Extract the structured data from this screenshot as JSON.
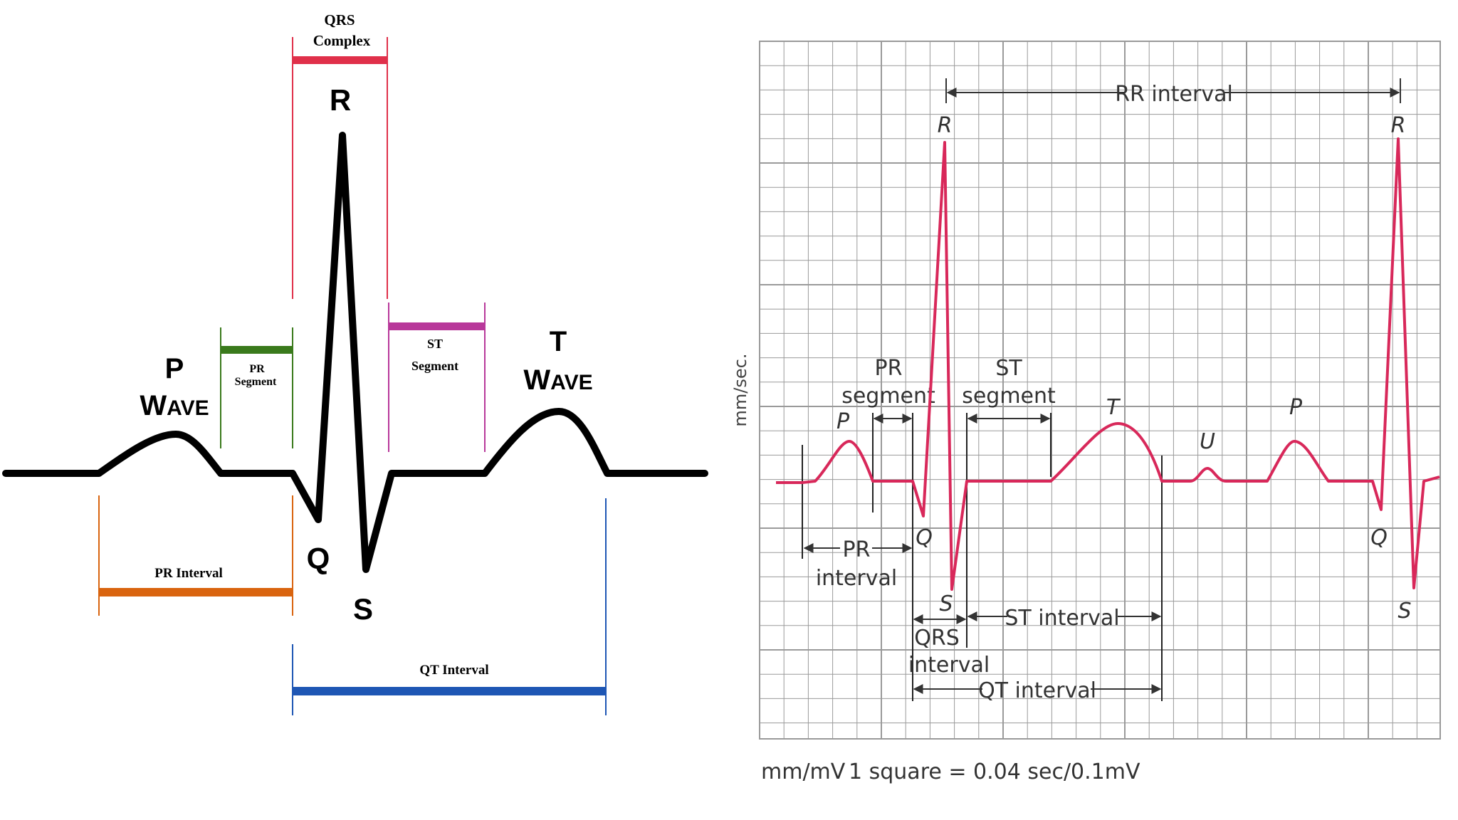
{
  "left_diagram": {
    "labels": {
      "qrs_complex_line1": "QRS",
      "qrs_complex_line2": "Complex",
      "r": "R",
      "q": "Q",
      "s": "S",
      "p_wave_p": "P",
      "p_wave_w": "W",
      "p_wave_rest": "AVE",
      "t_wave_t": "T",
      "t_wave_w": "W",
      "t_wave_rest": "AVE",
      "pr_segment_line1": "PR",
      "pr_segment_line2": "Segment",
      "st_segment_line1": "ST",
      "st_segment_line2": "Segment",
      "pr_interval": "PR Interval",
      "qt_interval": "QT Interval"
    },
    "colors": {
      "trace": "#000000",
      "qrs_complex": "#e0304a",
      "pr_segment": "#3a7a1c",
      "st_segment": "#b8389a",
      "pr_interval": "#d9640f",
      "qt_interval": "#1e56b4"
    }
  },
  "right_diagram": {
    "labels": {
      "rr_interval": "RR interval",
      "r_first": "R",
      "r_second": "R",
      "p_first": "P",
      "p_second": "P",
      "t": "T",
      "u": "U",
      "q_first": "Q",
      "q_second": "Q",
      "s_first": "S",
      "s_second": "S",
      "pr_segment_line1": "PR",
      "pr_segment_line2": "segment",
      "st_segment_line1": "ST",
      "st_segment_line2": "segment",
      "pr_interval_line1": "PR",
      "pr_interval_line2": "interval",
      "qrs_interval_line1": "QRS",
      "qrs_interval_line2": "interval",
      "st_interval": "ST interval",
      "qt_interval": "QT interval",
      "y_axis_label": "mm/sec.",
      "footer_units": "mm/mV",
      "footer_scale": "1 square = 0.04 sec/0.1mV"
    },
    "colors": {
      "trace": "#d8285a",
      "grid": "#9a9a9a",
      "annotation": "#333333"
    }
  }
}
